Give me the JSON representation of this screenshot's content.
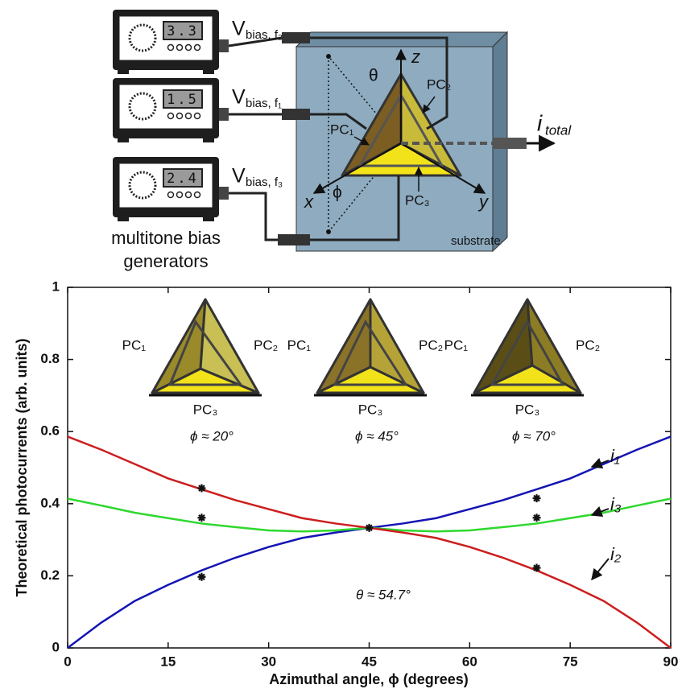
{
  "diagram": {
    "generators": [
      {
        "display": "3.3",
        "label_main": "V",
        "label_sub": "bias, f₂"
      },
      {
        "display": "1.5",
        "label_main": "V",
        "label_sub": "bias, f₁"
      },
      {
        "display": "2.4",
        "label_main": "V",
        "label_sub": "bias, f₃"
      }
    ],
    "generators_caption": [
      "multitone bias",
      "generators"
    ],
    "substrate_label": "substrate",
    "axes": {
      "z": "z",
      "x": "x",
      "y": "y",
      "theta": "θ",
      "phi": "ϕ"
    },
    "detectors": [
      "PC₁",
      "PC₂",
      "PC₃"
    ],
    "output_main": "i",
    "output_sub": "total"
  },
  "chart_data": {
    "type": "line",
    "x_label": "Azimuthal angle, ϕ (degrees)",
    "y_label": "Theoretical photocurrents (arb. units)",
    "x": [
      0,
      5,
      10,
      15,
      20,
      25,
      30,
      35,
      40,
      45,
      50,
      55,
      60,
      65,
      70,
      75,
      80,
      85,
      90
    ],
    "series": [
      {
        "name": "i₁",
        "color": "#1414b4",
        "values": [
          0,
          0.07,
          0.13,
          0.175,
          0.215,
          0.25,
          0.28,
          0.305,
          0.32,
          0.333,
          0.345,
          0.36,
          0.385,
          0.41,
          0.44,
          0.47,
          0.51,
          0.55,
          0.586
        ]
      },
      {
        "name": "i₃",
        "color": "#2ed82e",
        "values": [
          0.414,
          0.395,
          0.375,
          0.36,
          0.345,
          0.335,
          0.326,
          0.323,
          0.326,
          0.333,
          0.326,
          0.323,
          0.326,
          0.335,
          0.345,
          0.36,
          0.375,
          0.395,
          0.414
        ]
      },
      {
        "name": "i₂",
        "color": "#cc1e1e",
        "values": [
          0.586,
          0.55,
          0.51,
          0.47,
          0.44,
          0.41,
          0.385,
          0.36,
          0.345,
          0.333,
          0.32,
          0.305,
          0.28,
          0.25,
          0.215,
          0.175,
          0.13,
          0.07,
          0
        ]
      }
    ],
    "markers": {
      "x": [
        20,
        20,
        20,
        45,
        70,
        70,
        70
      ],
      "y": [
        0.443,
        0.361,
        0.197,
        0.333,
        0.415,
        0.361,
        0.222
      ]
    },
    "xlim": [
      0,
      90
    ],
    "xticks": [
      0,
      15,
      30,
      45,
      60,
      75,
      90
    ],
    "ylim": [
      0,
      1
    ],
    "yticks": [
      0,
      0.2,
      0.4,
      0.6,
      0.8,
      1
    ],
    "annotation": "θ ≈ 54.7°",
    "insets": [
      {
        "left": "PC₁",
        "right": "PC₂",
        "bottom": "PC₃",
        "label": "ϕ ≈ 20°"
      },
      {
        "left": "PC₁",
        "right": "PC₂",
        "bottom": "PC₃",
        "label": "ϕ ≈ 45°"
      },
      {
        "left": "PC₁",
        "right": "PC₂",
        "bottom": "PC₃",
        "label": "ϕ ≈ 70°"
      }
    ]
  }
}
